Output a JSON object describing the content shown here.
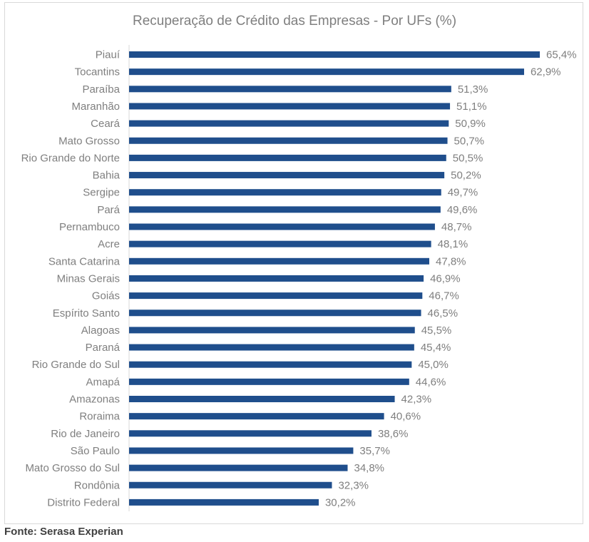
{
  "chart_data": {
    "type": "bar",
    "orientation": "horizontal",
    "title": "Recuperação de Crédito das Empresas - Por UFs (%)",
    "categories": [
      "Piauí",
      "Tocantins",
      "Paraíba",
      "Maranhão",
      "Ceará",
      "Mato Grosso",
      "Rio Grande do Norte",
      "Bahia",
      "Sergipe",
      "Pará",
      "Pernambuco",
      "Acre",
      "Santa Catarina",
      "Minas Gerais",
      "Goiás",
      "Espírito Santo",
      "Alagoas",
      "Paraná",
      "Rio Grande do Sul",
      "Amapá",
      "Amazonas",
      "Roraima",
      "Rio de Janeiro",
      "São Paulo",
      "Mato Grosso do Sul",
      "Rondônia",
      "Distrito Federal"
    ],
    "values": [
      65.4,
      62.9,
      51.3,
      51.1,
      50.9,
      50.7,
      50.5,
      50.2,
      49.7,
      49.6,
      48.7,
      48.1,
      47.8,
      46.9,
      46.7,
      46.5,
      45.5,
      45.4,
      45.0,
      44.6,
      42.3,
      40.6,
      38.6,
      35.7,
      34.8,
      32.3,
      30.2
    ],
    "data_labels": [
      "65,4%",
      "62,9%",
      "51,3%",
      "51,1%",
      "50,9%",
      "50,7%",
      "50,5%",
      "50,2%",
      "49,7%",
      "49,6%",
      "48,7%",
      "48,1%",
      "47,8%",
      "46,9%",
      "46,7%",
      "46,5%",
      "45,5%",
      "45,4%",
      "45,0%",
      "44,6%",
      "42,3%",
      "40,6%",
      "38,6%",
      "35,7%",
      "34,8%",
      "32,3%",
      "30,2%"
    ],
    "xlim": [
      0,
      65.4
    ],
    "xlabel": "",
    "ylabel": "",
    "grid": false,
    "legend": "none",
    "bar_color": "#1f4e8c",
    "label_color": "#7f7f7f"
  },
  "source": "Fonte: Serasa Experian"
}
